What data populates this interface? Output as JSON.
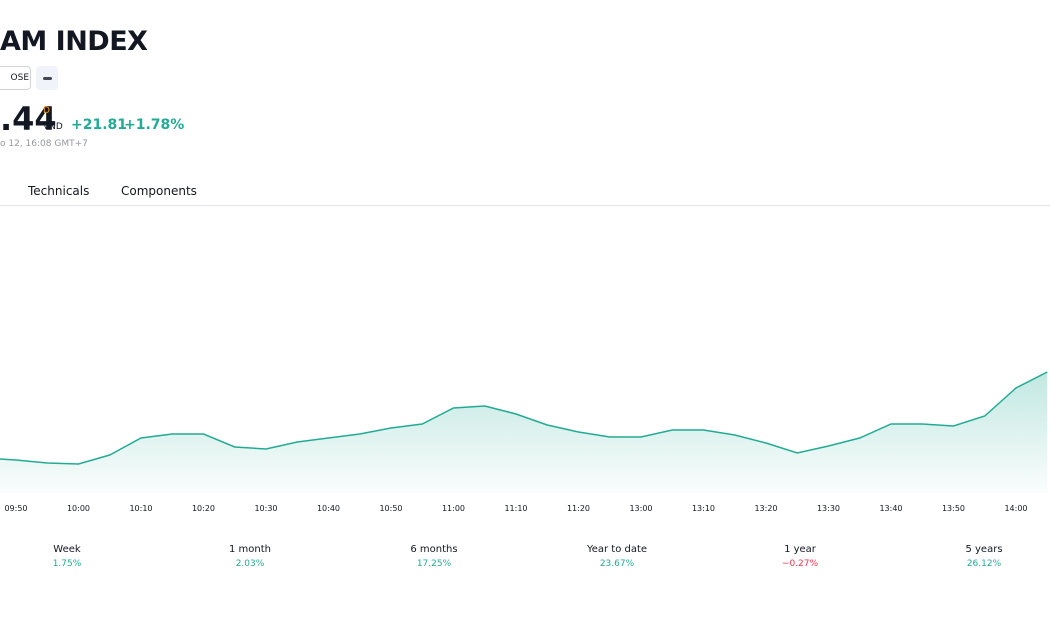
{
  "header": {
    "title": "AM INDEX",
    "exchange": "OSE",
    "price": ".44",
    "price_flag": "D",
    "currency": "VND",
    "change": "+21.81",
    "change_pct": "+1.78%",
    "timestamp": "o 12, 16:08 GMT+7"
  },
  "tabs": [
    "Technicals",
    "Components"
  ],
  "chart_data": {
    "type": "area",
    "categories": [
      null,
      "09:50",
      null,
      "10:00",
      null,
      "10:10",
      null,
      "10:20",
      null,
      "10:30",
      null,
      "10:40",
      null,
      "10:50",
      null,
      "11:00",
      null,
      "11:10",
      null,
      "11:20",
      null,
      "13:00",
      null,
      "13:10",
      null,
      "13:20",
      null,
      "13:30",
      null,
      "13:40",
      null,
      "13:50",
      null,
      "14:00",
      null
    ],
    "values": [
      35,
      33,
      30,
      29,
      38,
      55,
      59,
      59,
      46,
      44,
      51,
      55,
      59,
      65,
      69,
      85,
      87,
      79,
      68,
      61,
      56,
      56,
      63,
      63,
      58,
      50,
      40,
      47,
      55,
      69,
      69,
      67,
      77,
      105,
      121
    ],
    "color": "#22ab94",
    "ylim": [
      0,
      287
    ]
  },
  "performance": [
    {
      "label": "Week",
      "value": "1.75%",
      "color": "#22ab94"
    },
    {
      "label": "1 month",
      "value": "2.03%",
      "color": "#22ab94"
    },
    {
      "label": "6 months",
      "value": "17.25%",
      "color": "#22ab94"
    },
    {
      "label": "Year to date",
      "value": "23.67%",
      "color": "#22ab94"
    },
    {
      "label": "1 year",
      "value": "−0.27%",
      "color": "#f23645"
    },
    {
      "label": "5 years",
      "value": "26.12%",
      "color": "#22ab94"
    }
  ]
}
